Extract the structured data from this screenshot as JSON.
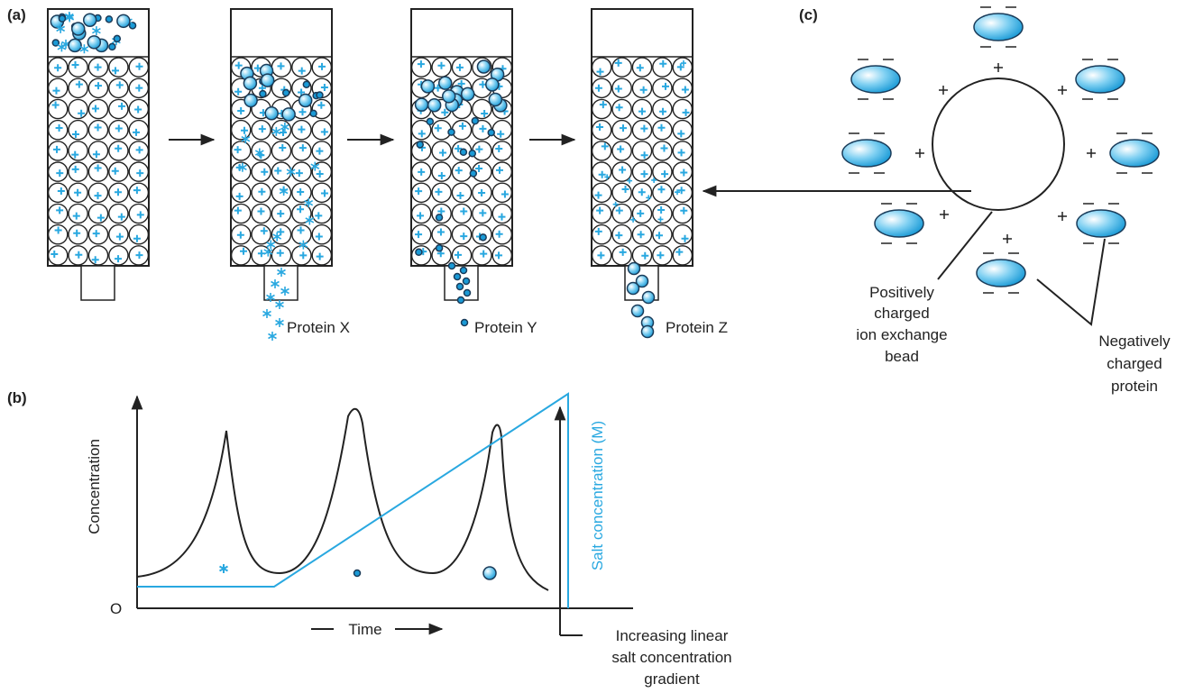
{
  "panel_labels": [
    "(a)",
    "(b)",
    "(c)"
  ],
  "panel_a": {
    "proteins": [
      "Protein X",
      "Protein Y",
      "Protein Z"
    ]
  },
  "panel_b": {
    "y_axis_label": "Concentration",
    "origin_label": "O",
    "x_axis_label": "Time",
    "salt_axis_label": "Salt concentration (M)",
    "gradient_label": [
      "Increasing linear",
      "salt concentration",
      "gradient"
    ]
  },
  "panel_c": {
    "bead_label": [
      "Positively",
      "charged",
      "ion exchange",
      "bead"
    ],
    "protein_label": [
      "Negatively",
      "charged",
      "protein"
    ]
  }
}
